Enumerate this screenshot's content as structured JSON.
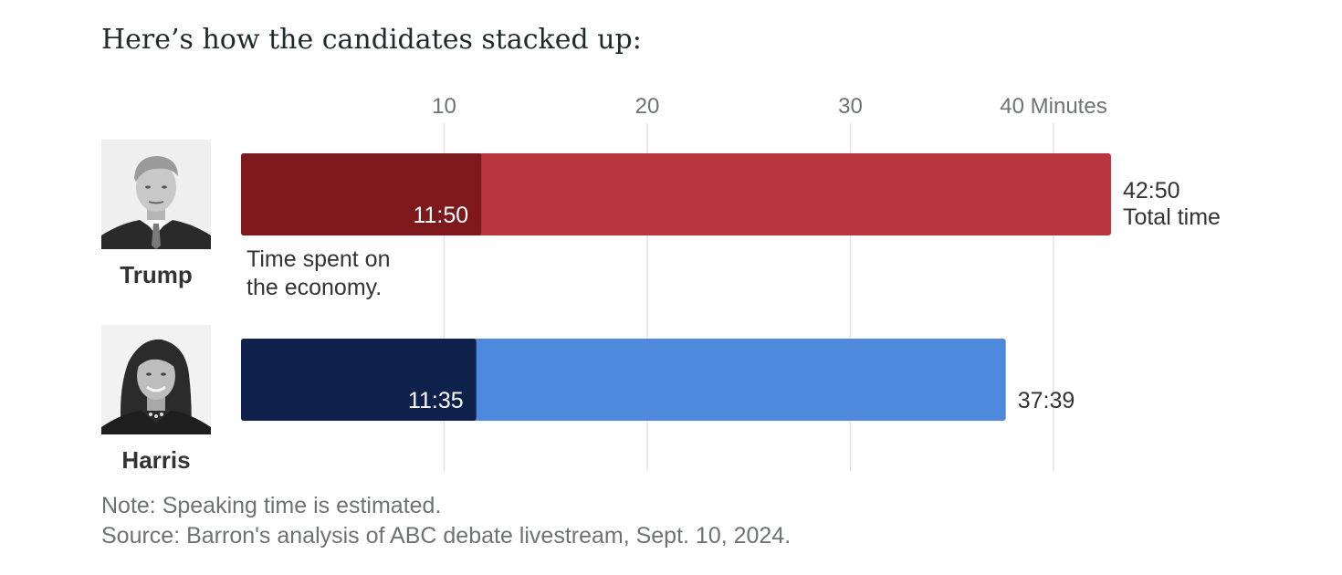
{
  "title": "Here’s how the candidates stacked up:",
  "colors": {
    "trump_total": "#b9363e",
    "trump_economy": "#7d181c",
    "harris_total": "#4f89de",
    "harris_economy": "#0d214a",
    "grid": "#e3e3e3",
    "text": "#333333",
    "muted": "#6f7272"
  },
  "candidates": [
    {
      "name": "Trump",
      "portrait_icon": "trump-portrait-icon"
    },
    {
      "name": "Harris",
      "portrait_icon": "harris-portrait-icon"
    }
  ],
  "chart_data": {
    "type": "bar",
    "orientation": "horizontal",
    "stacked": "overlay",
    "categories": [
      "Trump",
      "Harris"
    ],
    "series": [
      {
        "name": "Total time",
        "values": [
          42.83,
          37.65
        ],
        "labels": [
          "42:50",
          "37:39"
        ]
      },
      {
        "name": "Time spent on the economy.",
        "values": [
          11.83,
          11.58
        ],
        "labels": [
          "11:50",
          "11:35"
        ]
      }
    ],
    "xlim": [
      0,
      43.5
    ],
    "xticks": [
      10,
      20,
      30,
      40
    ],
    "xtick_labels": [
      "10",
      "20",
      "30",
      "40 Minutes"
    ],
    "total_label_suffix": "Total time",
    "economy_annotation": [
      "Time spent on",
      "the economy."
    ],
    "grid": true,
    "axis_position": "top"
  },
  "notes": {
    "note": "Note: Speaking time is estimated.",
    "source": "Source: Barron's analysis of ABC debate livestream, Sept. 10, 2024."
  }
}
